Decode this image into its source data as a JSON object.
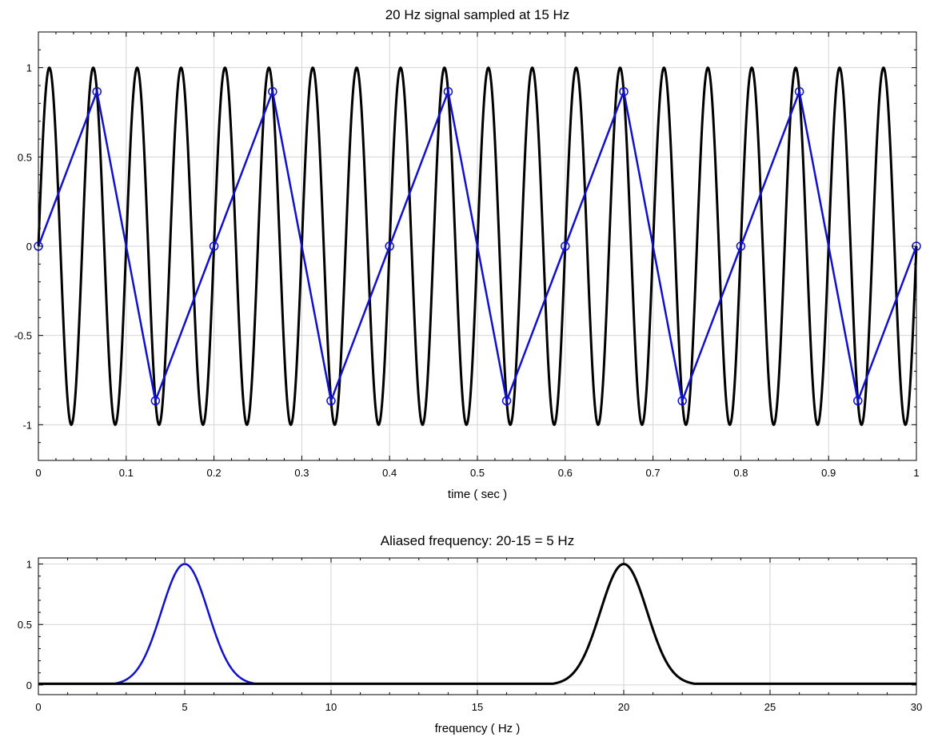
{
  "chart_data": [
    {
      "type": "line",
      "title": "20 Hz signal sampled at 15 Hz",
      "xlabel": "time ( sec )",
      "ylabel": "",
      "xlim": [
        0,
        1
      ],
      "ylim": [
        -1.2,
        1.2
      ],
      "grid": true,
      "x_ticks": [
        0,
        0.1,
        0.2,
        0.3,
        0.4,
        0.5,
        0.6,
        0.7,
        0.8,
        0.9,
        1
      ],
      "x_tick_labels": [
        "0",
        "0.1",
        "0.2",
        "0.3",
        "0.4",
        "0.5",
        "0.6",
        "0.7",
        "0.8",
        "0.9",
        "1"
      ],
      "y_ticks": [
        1,
        0.5,
        0,
        -0.5,
        -1
      ],
      "y_tick_labels": [
        "1",
        "0.5",
        "0",
        "-0.5",
        "-1"
      ],
      "series": [
        {
          "kind": "continuous-sine",
          "frequency_hz": 20,
          "amplitude": 1,
          "color": "#000000"
        },
        {
          "kind": "sampled",
          "marker": "circle",
          "color": "#1010d0",
          "x": [
            0,
            0.0667,
            0.1333,
            0.2,
            0.2667,
            0.3333,
            0.4,
            0.4667,
            0.5333,
            0.6,
            0.6667,
            0.7333,
            0.8,
            0.8667,
            0.9333,
            1
          ],
          "y": [
            0,
            0.866,
            -0.866,
            0,
            0.866,
            -0.866,
            0,
            0.866,
            -0.866,
            0,
            0.866,
            -0.866,
            0,
            0.866,
            -0.866,
            0
          ]
        }
      ]
    },
    {
      "type": "line",
      "title": "Aliased frequency: 20-15 = 5 Hz",
      "xlabel": "frequency ( Hz )",
      "ylabel": "",
      "xlim": [
        0,
        30
      ],
      "ylim": [
        -0.08,
        1.05
      ],
      "grid": true,
      "x_ticks": [
        0,
        5,
        10,
        15,
        20,
        25,
        30
      ],
      "x_tick_labels": [
        "0",
        "5",
        "10",
        "15",
        "20",
        "25",
        "30"
      ],
      "y_ticks": [
        1,
        0.5,
        0
      ],
      "y_tick_labels": [
        "1",
        "0.5",
        "0"
      ],
      "series": [
        {
          "kind": "spectrum-peak",
          "color": "#1010d0",
          "peak_hz": 5,
          "peak": 1,
          "x_range": [
            0,
            7.5
          ],
          "floor": 0.01
        },
        {
          "kind": "spectrum-peak",
          "color": "#000000",
          "peak_hz": 20,
          "peak": 1,
          "x_range": [
            0,
            30
          ],
          "floor": 0.01
        }
      ]
    }
  ]
}
